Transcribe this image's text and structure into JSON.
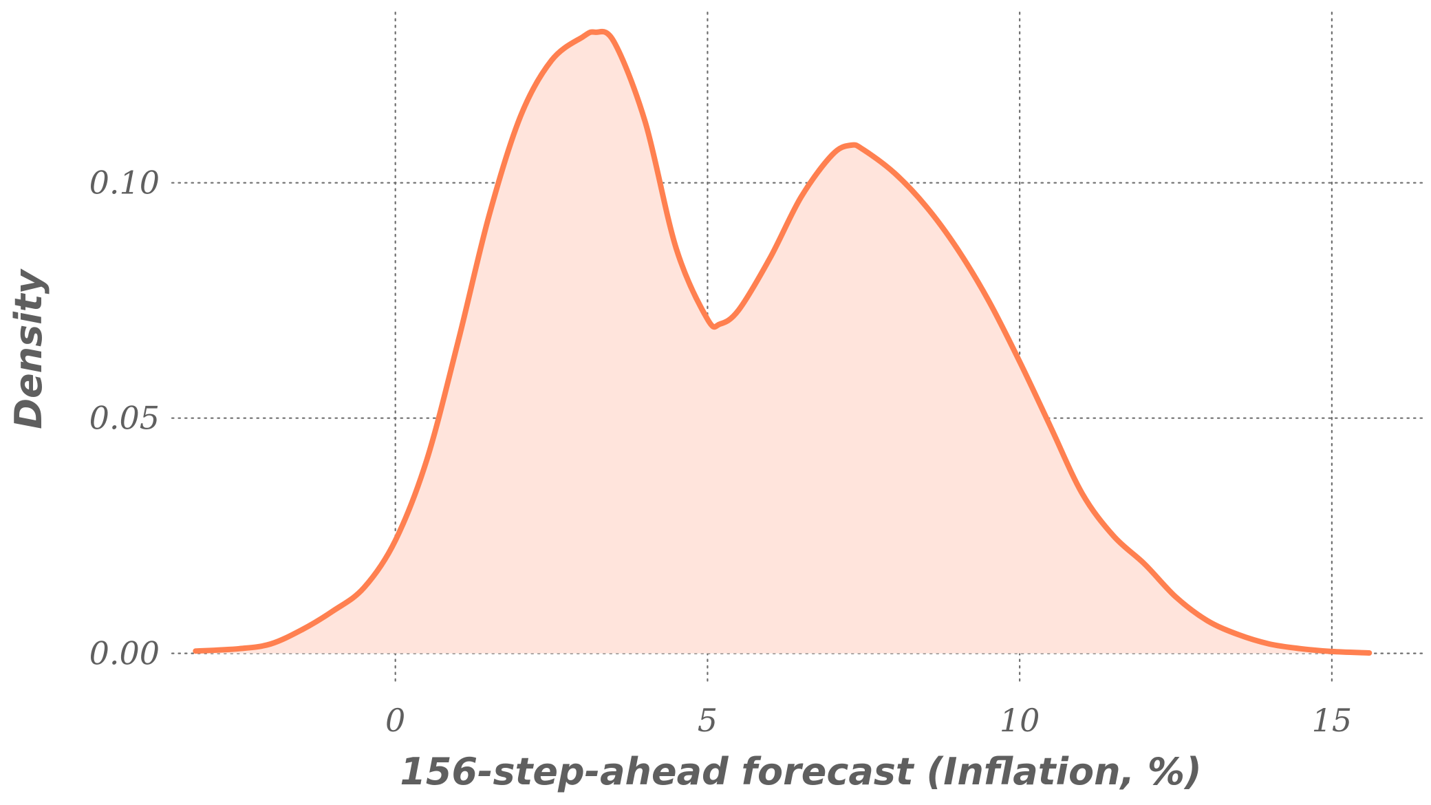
{
  "chart_data": {
    "type": "area",
    "xlabel": "156-step-ahead forecast (Inflation, %)",
    "ylabel": "Density",
    "xlim": [
      -3.6,
      16.5
    ],
    "ylim": [
      -0.004,
      0.133
    ],
    "x_ticks": [
      0,
      5,
      10,
      15
    ],
    "x_tick_labels": [
      "0",
      "5",
      "10",
      "15"
    ],
    "y_ticks": [
      0.0,
      0.05,
      0.1
    ],
    "y_tick_labels": [
      "0.00",
      "0.05",
      "0.10"
    ],
    "grid": true,
    "legend": "none",
    "series": [
      {
        "color": "#ff8050",
        "fill": "#ffe4dc",
        "x": [
          -3.2,
          -2.5,
          -2.0,
          -1.5,
          -1.0,
          -0.5,
          0.0,
          0.5,
          1.0,
          1.5,
          2.0,
          2.5,
          3.0,
          3.2,
          3.5,
          4.0,
          4.5,
          5.0,
          5.2,
          5.5,
          6.0,
          6.5,
          7.0,
          7.3,
          7.5,
          8.0,
          8.5,
          9.0,
          9.5,
          10.0,
          10.5,
          11.0,
          11.5,
          12.0,
          12.5,
          13.0,
          13.5,
          14.0,
          14.5,
          15.0,
          15.6
        ],
        "y": [
          0.0005,
          0.001,
          0.002,
          0.005,
          0.009,
          0.014,
          0.024,
          0.041,
          0.066,
          0.093,
          0.114,
          0.126,
          0.131,
          0.132,
          0.13,
          0.113,
          0.086,
          0.071,
          0.07,
          0.073,
          0.084,
          0.097,
          0.106,
          0.108,
          0.107,
          0.102,
          0.095,
          0.086,
          0.075,
          0.062,
          0.048,
          0.034,
          0.025,
          0.019,
          0.012,
          0.007,
          0.004,
          0.002,
          0.001,
          0.0004,
          0.0001
        ]
      }
    ]
  }
}
